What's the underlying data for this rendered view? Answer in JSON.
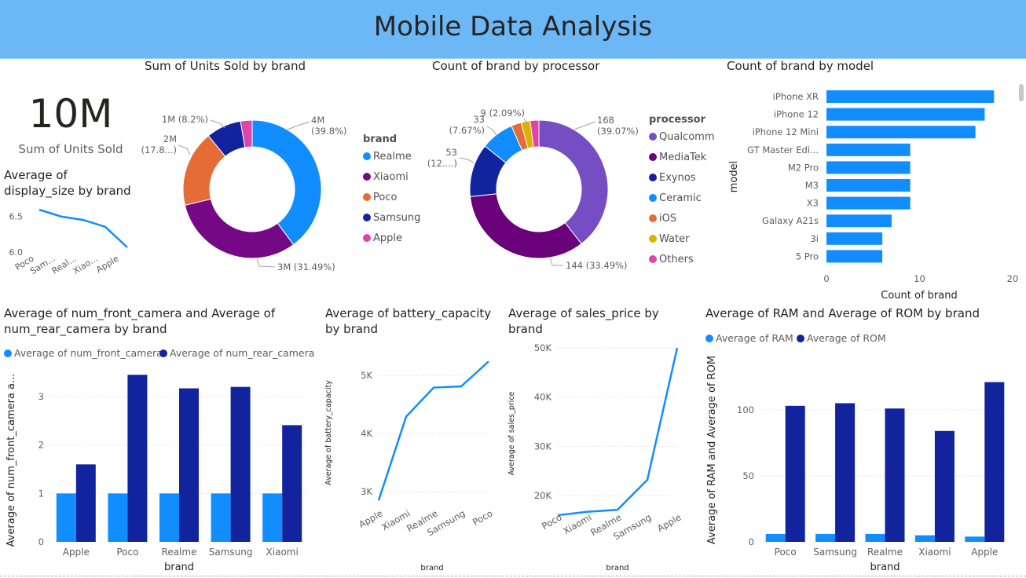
{
  "header": {
    "title": "Mobile Data Analysis"
  },
  "kpi": {
    "value": "10M",
    "label": "Sum of Units Sold"
  },
  "chart_data": [
    {
      "type": "line",
      "id": "display",
      "title_line1": "Average of",
      "title_line2": "display_size by brand",
      "categories": [
        "Poco",
        "Sam...",
        "Real...",
        "Xiao...",
        "Apple"
      ],
      "values": [
        6.6,
        6.5,
        6.45,
        6.35,
        6.05
      ],
      "yticks": [
        "6.5",
        "6.0"
      ],
      "color": "#118dff"
    },
    {
      "type": "pie",
      "id": "units",
      "title": "Sum of Units Sold by brand",
      "legend_title": "brand",
      "legend_position": "right",
      "slices": [
        {
          "name": "Realme",
          "value": 39.8,
          "label1": "4M",
          "label2": "(39.8%)",
          "color": "#118dff"
        },
        {
          "name": "Xiaomi",
          "value": 31.49,
          "label1": "3M (31.49%)",
          "label2": "",
          "color": "#750985"
        },
        {
          "name": "Poco",
          "value": 17.8,
          "label1": "2M",
          "label2": "(17.8...)",
          "color": "#e66c37"
        },
        {
          "name": "Samsung",
          "value": 8.2,
          "label1": "1M (8.2%)",
          "label2": "",
          "color": "#12239e"
        },
        {
          "name": "Apple",
          "value": 2.71,
          "label1": "",
          "label2": "",
          "color": "#e044a7"
        }
      ]
    },
    {
      "type": "pie",
      "id": "processor",
      "title": "Count of brand by processor",
      "legend_title": "processor",
      "legend_position": "right",
      "slices": [
        {
          "name": "Qualcomm",
          "value": 39.07,
          "label1": "168",
          "label2": "(39.07%)",
          "color": "#744ec2"
        },
        {
          "name": "MediaTek",
          "value": 33.49,
          "label1": "144 (33.49%)",
          "label2": "",
          "color": "#6b007b"
        },
        {
          "name": "Exynos",
          "value": 12.33,
          "label1": "53",
          "label2": "(12....)",
          "color": "#12239e"
        },
        {
          "name": "Ceramic",
          "value": 7.67,
          "label1": "33",
          "label2": "(7.67%)",
          "color": "#118dff"
        },
        {
          "name": "iOS",
          "value": 2.33,
          "label1": "",
          "label2": "",
          "color": "#e66c37"
        },
        {
          "name": "Water",
          "value": 2.09,
          "label1": "9 (2.09%)",
          "label2": "",
          "color": "#d9b300"
        },
        {
          "name": "Others",
          "value": 2.02,
          "label1": "",
          "label2": "",
          "color": "#e044a7"
        }
      ]
    },
    {
      "type": "bar",
      "id": "model",
      "orientation": "horizontal",
      "title": "Count of brand by model",
      "xlabel": "Count of brand",
      "ylabel": "model",
      "categories": [
        "iPhone XR",
        "iPhone 12",
        "iPhone 12 Mini",
        "GT Master Edi...",
        "M2 Pro",
        "M3",
        "X3",
        "Galaxy A21s",
        "3i",
        "5 Pro"
      ],
      "values": [
        18,
        17,
        16,
        9,
        9,
        9,
        9,
        7,
        6,
        6
      ],
      "xlim": [
        0,
        20
      ],
      "xticks": [
        "0",
        "10",
        "20"
      ],
      "color": "#118dff"
    },
    {
      "type": "bar",
      "id": "camera",
      "title_line1": "Average of num_front_camera and Average of",
      "title_line2": "num_rear_camera by brand",
      "xlabel": "brand",
      "ylabel": "Average of num_front_camera a...",
      "categories": [
        "Apple",
        "Poco",
        "Realme",
        "Samsung",
        "Xiaomi"
      ],
      "series": [
        {
          "name": "Average of num_front_camera",
          "values": [
            1,
            1,
            1,
            1,
            1
          ],
          "color": "#118dff"
        },
        {
          "name": "Average of num_rear_camera",
          "values": [
            1.6,
            3.45,
            3.17,
            3.2,
            2.41
          ],
          "color": "#12239e"
        }
      ],
      "ylim": [
        0,
        3.6
      ],
      "yticks": [
        "0",
        "1",
        "2",
        "3"
      ]
    },
    {
      "type": "line",
      "id": "battery",
      "title_line1": "Average of battery_capacity",
      "title_line2": "by brand",
      "xlabel": "brand",
      "ylabel": "Average of battery_capacity",
      "categories": [
        "Apple",
        "Xiaomi",
        "Realme",
        "Samsung",
        "Poco"
      ],
      "values": [
        2850,
        4290,
        4790,
        4810,
        5240
      ],
      "yticks": [
        "5K",
        "4K",
        "3K"
      ],
      "color": "#118dff"
    },
    {
      "type": "line",
      "id": "price",
      "title_line1": "Average of sales_price by",
      "title_line2": "brand",
      "xlabel": "brand",
      "ylabel": "Average of sales_price",
      "categories": [
        "Poco",
        "Xiaomi",
        "Realme",
        "Samsung",
        "Apple"
      ],
      "values": [
        16000,
        16700,
        17100,
        23200,
        50000
      ],
      "yticks": [
        "50K",
        "40K",
        "30K",
        "20K"
      ],
      "color": "#118dff"
    },
    {
      "type": "bar",
      "id": "ram",
      "title": "Average of RAM and Average of ROM by brand",
      "xlabel": "brand",
      "ylabel": "Average of RAM and Average of ROM",
      "categories": [
        "Poco",
        "Samsung",
        "Realme",
        "Xiaomi",
        "Apple"
      ],
      "series": [
        {
          "name": "Average of RAM",
          "values": [
            6,
            6,
            6,
            5,
            4
          ],
          "color": "#118dff"
        },
        {
          "name": "Average of ROM",
          "values": [
            103,
            105,
            101,
            84,
            121
          ],
          "color": "#12239e"
        }
      ],
      "ylim": [
        0,
        135
      ],
      "yticks": [
        "0",
        "50",
        "100"
      ]
    }
  ]
}
